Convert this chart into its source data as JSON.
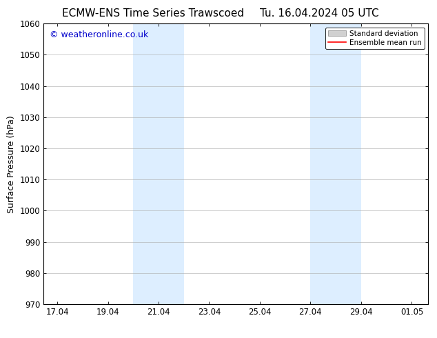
{
  "title_left": "ECMW-ENS Time Series Trawscoed",
  "title_right": "Tu. 16.04.2024 05 UTC",
  "ylabel": "Surface Pressure (hPa)",
  "ylim": [
    970,
    1060
  ],
  "yticks": [
    970,
    980,
    990,
    1000,
    1010,
    1020,
    1030,
    1040,
    1050,
    1060
  ],
  "xlim_start": 16.5,
  "xlim_end": 31.7,
  "xtick_labels": [
    "17.04",
    "19.04",
    "21.04",
    "23.04",
    "25.04",
    "27.04",
    "29.04",
    "01.05"
  ],
  "xtick_positions": [
    17.04,
    19.04,
    21.04,
    23.04,
    25.04,
    27.04,
    29.04,
    31.05
  ],
  "shaded_regions": [
    {
      "x_start": 20.04,
      "x_end": 22.04
    },
    {
      "x_start": 27.04,
      "x_end": 29.04
    }
  ],
  "shaded_color": "#ddeeff",
  "watermark_text": "© weatheronline.co.uk",
  "watermark_color": "#0000cc",
  "watermark_fontsize": 9,
  "legend_std_label": "Standard deviation",
  "legend_mean_label": "Ensemble mean run",
  "legend_std_color": "#d0d0d0",
  "legend_mean_color": "#ff0000",
  "title_fontsize": 11,
  "axis_label_fontsize": 9,
  "tick_fontsize": 8.5,
  "background_color": "#ffffff",
  "grid_color": "#aaaaaa",
  "grid_linestyle": "-",
  "grid_linewidth": 0.4
}
